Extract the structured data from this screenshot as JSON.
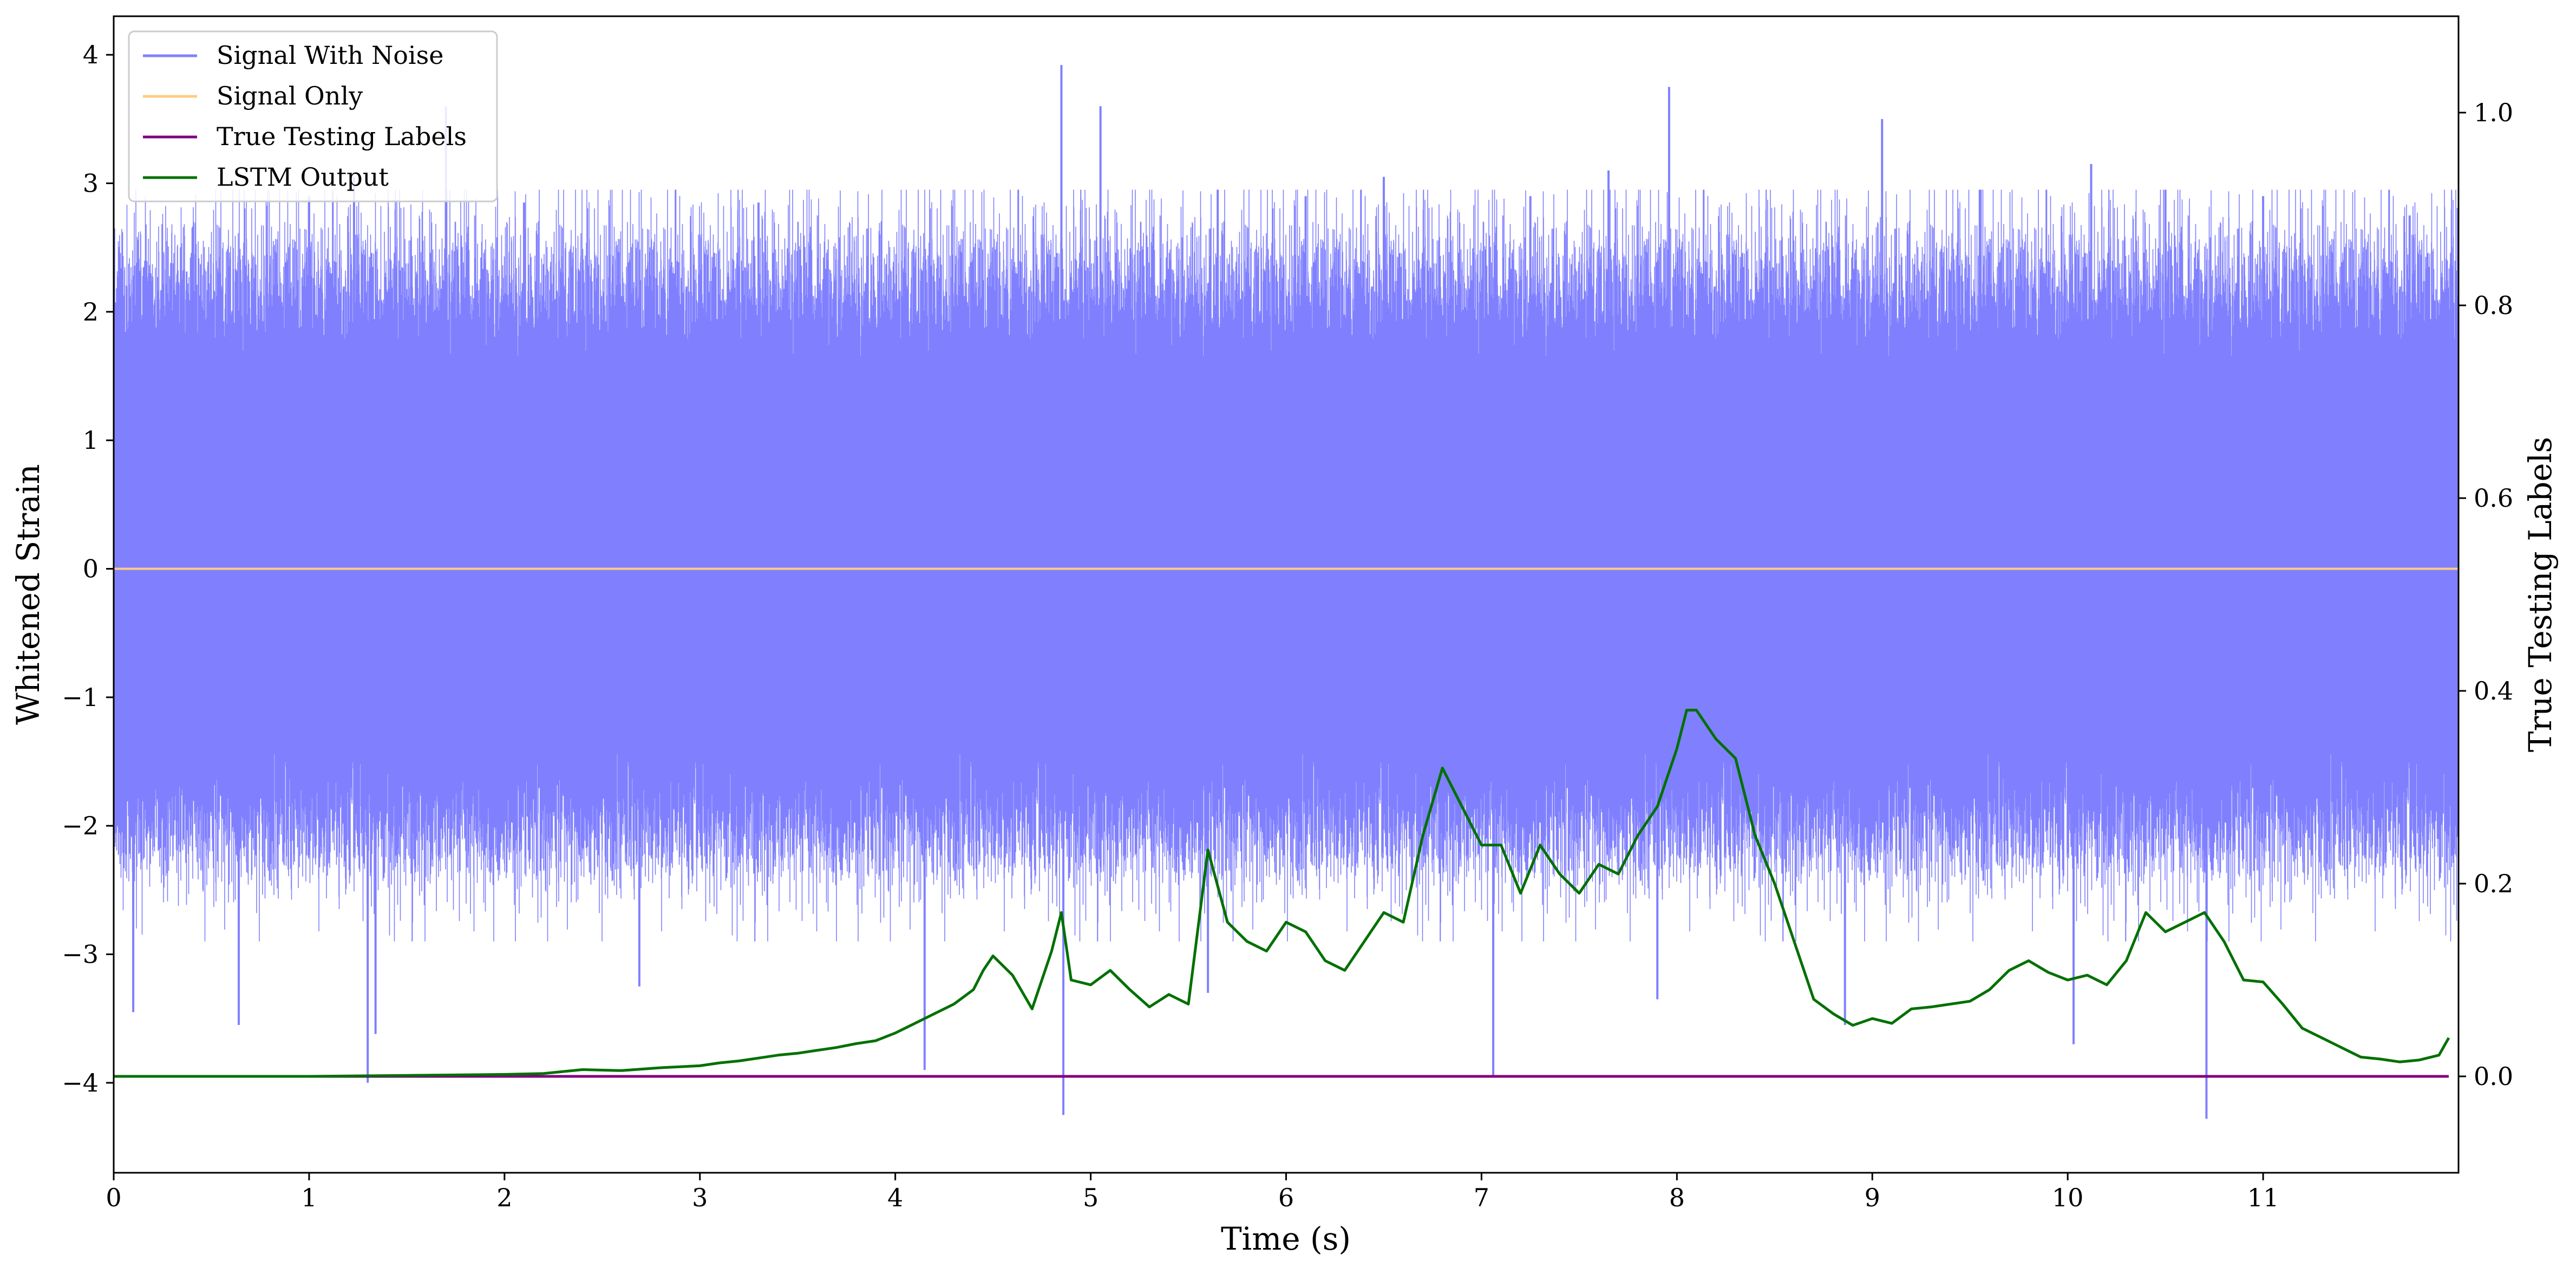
{
  "chart_data": {
    "type": "line",
    "xlabel": "Time (s)",
    "ylabel_left": "Whitened Strain",
    "ylabel_right": "True Testing Labels",
    "xlim": [
      0,
      12
    ],
    "ylim_left": [
      -4.7,
      4.3
    ],
    "ylim_right": [
      -0.1,
      1.1
    ],
    "x_ticks": [
      0,
      1,
      2,
      3,
      4,
      5,
      6,
      7,
      8,
      9,
      10,
      11
    ],
    "y_left_ticks": [
      -4,
      -3,
      -2,
      -1,
      0,
      1,
      2,
      3,
      4
    ],
    "y_right_ticks": [
      0.0,
      0.2,
      0.4,
      0.6,
      0.8,
      1.0
    ],
    "legend": {
      "placement": "top-left",
      "entries": [
        "Signal With Noise",
        "Signal Only",
        "True Testing Labels",
        "LSTM Output"
      ]
    },
    "series": [
      {
        "name": "Signal With Noise",
        "axis": "left",
        "color": "#8080ff",
        "kind": "noise",
        "envelope": {
          "typical_range": [
            -2.2,
            2.4
          ],
          "min": -4.28,
          "max": 3.92
        },
        "spikes": [
          {
            "x": 0.1,
            "y": -3.45
          },
          {
            "x": 0.64,
            "y": -3.55
          },
          {
            "x": 1.0,
            "y": 2.9
          },
          {
            "x": 1.23,
            "y": 3.05
          },
          {
            "x": 1.3,
            "y": -4.0
          },
          {
            "x": 1.34,
            "y": -3.62
          },
          {
            "x": 1.7,
            "y": 3.6
          },
          {
            "x": 2.1,
            "y": 2.85
          },
          {
            "x": 2.69,
            "y": -3.25
          },
          {
            "x": 3.3,
            "y": 2.85
          },
          {
            "x": 4.15,
            "y": -3.9
          },
          {
            "x": 4.85,
            "y": 3.92
          },
          {
            "x": 4.86,
            "y": -4.25
          },
          {
            "x": 5.05,
            "y": 3.6
          },
          {
            "x": 5.6,
            "y": -3.3
          },
          {
            "x": 5.65,
            "y": 2.95
          },
          {
            "x": 6.1,
            "y": 2.9
          },
          {
            "x": 6.5,
            "y": 3.05
          },
          {
            "x": 7.06,
            "y": -3.95
          },
          {
            "x": 7.25,
            "y": 2.9
          },
          {
            "x": 7.65,
            "y": 3.1
          },
          {
            "x": 7.9,
            "y": -3.35
          },
          {
            "x": 7.96,
            "y": 3.75
          },
          {
            "x": 8.86,
            "y": -3.55
          },
          {
            "x": 9.05,
            "y": 3.5
          },
          {
            "x": 9.55,
            "y": 2.95
          },
          {
            "x": 10.03,
            "y": -3.7
          },
          {
            "x": 10.12,
            "y": 3.15
          },
          {
            "x": 10.5,
            "y": 2.95
          },
          {
            "x": 10.71,
            "y": -4.28
          },
          {
            "x": 11.0,
            "y": 2.9
          },
          {
            "x": 11.75,
            "y": 2.75
          }
        ]
      },
      {
        "name": "Signal Only",
        "axis": "left",
        "color": "#ffcc80",
        "x": [
          0,
          12
        ],
        "y": [
          0,
          0
        ]
      },
      {
        "name": "True Testing Labels",
        "axis": "right",
        "color": "#800080",
        "x": [
          0,
          11.95
        ],
        "y": [
          0,
          0
        ]
      },
      {
        "name": "LSTM Output",
        "axis": "right",
        "color": "#007000",
        "x": [
          0,
          1.0,
          1.5,
          2.0,
          2.2,
          2.4,
          2.6,
          2.8,
          3.0,
          3.1,
          3.2,
          3.3,
          3.4,
          3.5,
          3.6,
          3.7,
          3.8,
          3.9,
          4.0,
          4.1,
          4.2,
          4.3,
          4.4,
          4.45,
          4.5,
          4.6,
          4.7,
          4.8,
          4.85,
          4.9,
          5.0,
          5.1,
          5.2,
          5.3,
          5.4,
          5.5,
          5.6,
          5.7,
          5.8,
          5.9,
          6.0,
          6.1,
          6.2,
          6.3,
          6.4,
          6.5,
          6.6,
          6.7,
          6.8,
          6.9,
          7.0,
          7.1,
          7.2,
          7.3,
          7.4,
          7.5,
          7.6,
          7.7,
          7.8,
          7.9,
          8.0,
          8.05,
          8.1,
          8.2,
          8.3,
          8.4,
          8.5,
          8.6,
          8.7,
          8.8,
          8.9,
          9.0,
          9.1,
          9.2,
          9.3,
          9.4,
          9.5,
          9.6,
          9.7,
          9.8,
          9.9,
          10.0,
          10.1,
          10.2,
          10.3,
          10.4,
          10.5,
          10.6,
          10.7,
          10.8,
          10.9,
          11.0,
          11.1,
          11.2,
          11.3,
          11.4,
          11.5,
          11.6,
          11.7,
          11.8,
          11.9,
          11.95
        ],
        "y": [
          0.0,
          0.0,
          0.001,
          0.002,
          0.003,
          0.007,
          0.006,
          0.009,
          0.011,
          0.014,
          0.016,
          0.019,
          0.022,
          0.024,
          0.027,
          0.03,
          0.034,
          0.037,
          0.045,
          0.055,
          0.065,
          0.075,
          0.09,
          0.11,
          0.125,
          0.105,
          0.07,
          0.13,
          0.17,
          0.1,
          0.095,
          0.11,
          0.09,
          0.072,
          0.085,
          0.075,
          0.235,
          0.16,
          0.14,
          0.13,
          0.16,
          0.15,
          0.12,
          0.11,
          0.14,
          0.17,
          0.16,
          0.25,
          0.32,
          0.28,
          0.24,
          0.24,
          0.19,
          0.24,
          0.21,
          0.19,
          0.22,
          0.21,
          0.25,
          0.28,
          0.34,
          0.38,
          0.38,
          0.35,
          0.33,
          0.25,
          0.2,
          0.14,
          0.08,
          0.065,
          0.053,
          0.06,
          0.055,
          0.07,
          0.072,
          0.075,
          0.078,
          0.09,
          0.11,
          0.12,
          0.108,
          0.1,
          0.105,
          0.095,
          0.12,
          0.17,
          0.15,
          0.16,
          0.17,
          0.14,
          0.1,
          0.098,
          0.075,
          0.05,
          0.04,
          0.03,
          0.02,
          0.018,
          0.015,
          0.017,
          0.022,
          0.04
        ]
      }
    ]
  }
}
